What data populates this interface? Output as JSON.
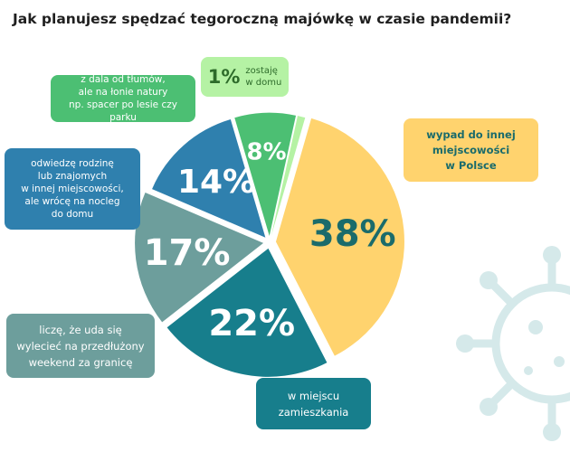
{
  "title": "Jak planujesz spędzać tegoroczną majówkę w czasie pandemii?",
  "chart_data": {
    "type": "pie",
    "title": "Jak planujesz spędzać tegoroczną majówkę w czasie pandemii?",
    "categories": [
      "wypad do innej miejscowości w Polsce",
      "w miejscu zamieszkania",
      "liczę, że uda się wylecieć na przedłużony weekend za granicę",
      "odwiedzę rodzinę lub znajomych w innej miejscowości, ale wrócę na nocleg do domu",
      "z dala od tłumów, ale na łonie natury np. spacer po lesie czy parku",
      "zostaję w domu"
    ],
    "values": [
      38,
      22,
      17,
      14,
      8,
      1
    ],
    "value_labels": [
      "38%",
      "22%",
      "17%",
      "14%",
      "8%",
      "1%"
    ],
    "colors": [
      "#ffd36e",
      "#177e8c",
      "#6d9e9c",
      "#2f80ae",
      "#4cbf73",
      "#b5f2a4"
    ],
    "label_colors": [
      "#1a6b6b",
      "#ffffff",
      "#ffffff",
      "#ffffff",
      "#ffffff",
      "#2d6b2a"
    ]
  },
  "callouts": {
    "stay": {
      "pct": "1%",
      "lines": [
        "zostaję",
        "w domu"
      ]
    },
    "nature": {
      "lines": [
        "z dala od tłumów,",
        "ale na łonie natury",
        "np. spacer po lesie czy parku"
      ]
    },
    "family": {
      "lines": [
        "odwiedzę rodzinę",
        "lub znajomych",
        "w innej miejscowości,",
        "ale wrócę na nocleg",
        "do domu"
      ]
    },
    "trip": {
      "lines": [
        "wypad do innej",
        "miejscowości",
        "w Polsce"
      ]
    },
    "abroad": {
      "lines": [
        "liczę, że uda się",
        "wylecieć na przedłużony",
        "weekend za granicę"
      ]
    },
    "home": {
      "lines": [
        "w miejscu",
        "zamieszkania"
      ]
    }
  },
  "decor": {
    "virus_color": "#d5e9ea",
    "virus_icon": "coronavirus-icon"
  }
}
